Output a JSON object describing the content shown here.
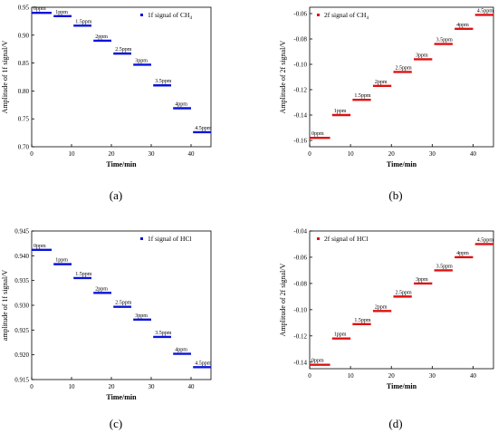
{
  "colors": {
    "blue": "#0a14d8",
    "red": "#e01010",
    "axis": "#000000"
  },
  "chart_data": [
    {
      "type": "scatter",
      "caption": "(a)",
      "xlabel": "Time/min",
      "ylabel": "Amplitude of 1f signal/V",
      "xlim": [
        0,
        45
      ],
      "ylim": [
        0.7,
        0.95
      ],
      "xticks": [
        0,
        10,
        20,
        30,
        40
      ],
      "yticks": [
        0.7,
        0.75,
        0.8,
        0.85,
        0.9,
        0.95
      ],
      "ytick_labels": [
        "0.70",
        "0.75",
        "0.80",
        "0.85",
        "0.90",
        "0.95"
      ],
      "legend": {
        "label": "1f signal of CH",
        "subscript": "4",
        "position": "top-right"
      },
      "color": "blue",
      "segments": [
        {
          "label": "0ppm",
          "x": [
            0,
            5
          ],
          "y": 0.94
        },
        {
          "label": "1ppm",
          "x": [
            5.5,
            10
          ],
          "y": 0.934
        },
        {
          "label": "1.5ppm",
          "x": [
            10.5,
            15
          ],
          "y": 0.917
        },
        {
          "label": "2ppm",
          "x": [
            15.5,
            20
          ],
          "y": 0.89
        },
        {
          "label": "2.5ppm",
          "x": [
            20.5,
            25
          ],
          "y": 0.867
        },
        {
          "label": "3ppm",
          "x": [
            25.5,
            30
          ],
          "y": 0.847
        },
        {
          "label": "3.5ppm",
          "x": [
            30.5,
            35
          ],
          "y": 0.81
        },
        {
          "label": "4ppm",
          "x": [
            35.5,
            40
          ],
          "y": 0.769
        },
        {
          "label": "4.5ppm",
          "x": [
            40.5,
            45
          ],
          "y": 0.726
        }
      ]
    },
    {
      "type": "scatter",
      "caption": "(b)",
      "xlabel": "Time/min",
      "ylabel": "Amplitude of 2f signal/V",
      "xlim": [
        0,
        45
      ],
      "ylim": [
        -0.165,
        -0.055
      ],
      "xticks": [
        0,
        10,
        20,
        30,
        40
      ],
      "yticks": [
        -0.16,
        -0.14,
        -0.12,
        -0.1,
        -0.08,
        -0.06
      ],
      "ytick_labels": [
        "-0.16",
        "-0.14",
        "-0.12",
        "-0.10",
        "-0.08",
        "-0.06"
      ],
      "legend": {
        "label": "2f signal of CH",
        "subscript": "4",
        "position": "top-left"
      },
      "color": "red",
      "segments": [
        {
          "label": "0ppm",
          "x": [
            0,
            5
          ],
          "y": -0.158
        },
        {
          "label": "1ppm",
          "x": [
            5.5,
            10
          ],
          "y": -0.14
        },
        {
          "label": "1.5ppm",
          "x": [
            10.5,
            15
          ],
          "y": -0.128
        },
        {
          "label": "2ppm",
          "x": [
            15.5,
            20
          ],
          "y": -0.117
        },
        {
          "label": "2.5ppm",
          "x": [
            20.5,
            25
          ],
          "y": -0.106
        },
        {
          "label": "3ppm",
          "x": [
            25.5,
            30
          ],
          "y": -0.096
        },
        {
          "label": "3.5ppm",
          "x": [
            30.5,
            35
          ],
          "y": -0.084
        },
        {
          "label": "4ppm",
          "x": [
            35.5,
            40
          ],
          "y": -0.072
        },
        {
          "label": "4.5ppm",
          "x": [
            40.5,
            45
          ],
          "y": -0.061
        }
      ]
    },
    {
      "type": "scatter",
      "caption": "(c)",
      "xlabel": "Time/min",
      "ylabel": "amplitude of 1f signal/V",
      "xlim": [
        0,
        45
      ],
      "ylim": [
        0.915,
        0.945
      ],
      "xticks": [
        0,
        10,
        20,
        30,
        40
      ],
      "yticks": [
        0.915,
        0.92,
        0.925,
        0.93,
        0.935,
        0.94,
        0.945
      ],
      "ytick_labels": [
        "0.915",
        "0.920",
        "0.925",
        "0.930",
        "0.935",
        "0.940",
        "0.945"
      ],
      "legend": {
        "label": "1f signal of HCl",
        "subscript": "",
        "position": "top-right"
      },
      "color": "blue",
      "segments": [
        {
          "label": "0ppm",
          "x": [
            0,
            5
          ],
          "y": 0.9412
        },
        {
          "label": "1ppm",
          "x": [
            5.5,
            10
          ],
          "y": 0.9383
        },
        {
          "label": "1.5ppm",
          "x": [
            10.5,
            15
          ],
          "y": 0.9355
        },
        {
          "label": "2ppm",
          "x": [
            15.5,
            20
          ],
          "y": 0.9325
        },
        {
          "label": "2.5ppm",
          "x": [
            20.5,
            25
          ],
          "y": 0.9297
        },
        {
          "label": "3ppm",
          "x": [
            25.5,
            30
          ],
          "y": 0.9271
        },
        {
          "label": "3.5ppm",
          "x": [
            30.5,
            35
          ],
          "y": 0.9236
        },
        {
          "label": "4ppm",
          "x": [
            35.5,
            40
          ],
          "y": 0.9202
        },
        {
          "label": "4.5ppm",
          "x": [
            40.5,
            45
          ],
          "y": 0.9175
        }
      ]
    },
    {
      "type": "scatter",
      "caption": "(d)",
      "xlabel": "Time/min",
      "ylabel": "Amplitude of 2f signal/V",
      "xlim": [
        0,
        45
      ],
      "ylim": [
        -0.145,
        -0.04
      ],
      "xticks": [
        0,
        10,
        20,
        30,
        40
      ],
      "yticks": [
        -0.14,
        -0.12,
        -0.1,
        -0.08,
        -0.06,
        -0.04
      ],
      "ytick_labels": [
        "-0.14",
        "-0.12",
        "-0.10",
        "-0.08",
        "-0.06",
        "-0.04"
      ],
      "legend": {
        "label": "2f signal of HCl",
        "subscript": "",
        "position": "top-left"
      },
      "color": "red",
      "segments": [
        {
          "label": "0ppm",
          "x": [
            0,
            5
          ],
          "y": -0.142
        },
        {
          "label": "1ppm",
          "x": [
            5.5,
            10
          ],
          "y": -0.122
        },
        {
          "label": "1.5ppm",
          "x": [
            10.5,
            15
          ],
          "y": -0.111
        },
        {
          "label": "2ppm",
          "x": [
            15.5,
            20
          ],
          "y": -0.101
        },
        {
          "label": "2.5ppm",
          "x": [
            20.5,
            25
          ],
          "y": -0.09
        },
        {
          "label": "3ppm",
          "x": [
            25.5,
            30
          ],
          "y": -0.08
        },
        {
          "label": "3.5ppm",
          "x": [
            30.5,
            35
          ],
          "y": -0.07
        },
        {
          "label": "4ppm",
          "x": [
            35.5,
            40
          ],
          "y": -0.06
        },
        {
          "label": "4.5ppm",
          "x": [
            40.5,
            45
          ],
          "y": -0.05
        }
      ]
    }
  ]
}
